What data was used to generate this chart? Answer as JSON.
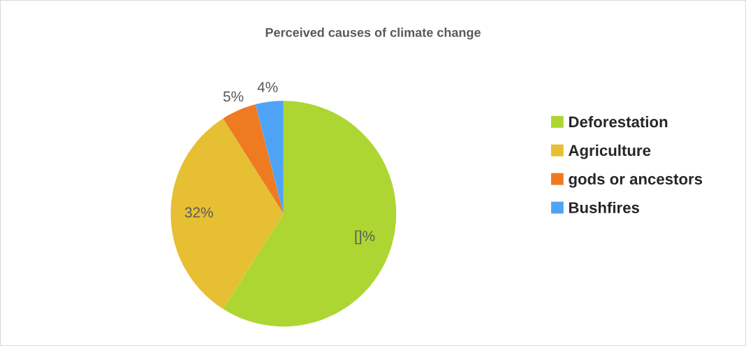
{
  "chart_data": {
    "type": "pie",
    "title": "Perceived causes of climate change",
    "categories": [
      "Deforestation",
      "Agriculture",
      "gods or ancestors",
      "Bushfires"
    ],
    "values": [
      59,
      32,
      5,
      4
    ],
    "colors": [
      "#add633",
      "#e6bf33",
      "#ee7a22",
      "#4fa3f5"
    ],
    "value_labels": [
      "[]%",
      "32%",
      "5%",
      "4%"
    ],
    "legend": "right"
  }
}
